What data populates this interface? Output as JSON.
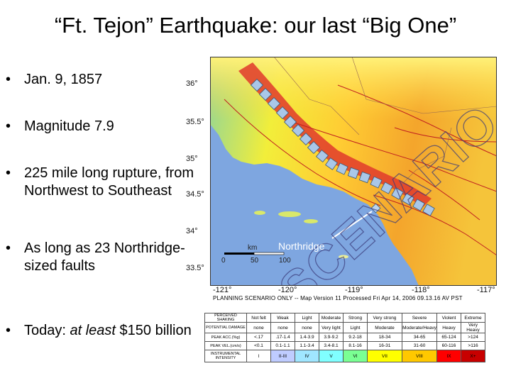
{
  "title": "“Ft. Tejon” Earthquake: our last “Big One”",
  "bullets": [
    {
      "text": "Jan. 9, 1857"
    },
    {
      "text": "Magnitude 7.9"
    },
    {
      "text": "225 mile long rupture, from Northwest to Southeast"
    },
    {
      "text_prefix": "As long as 23 Northridge-sized faults"
    },
    {
      "text_prefix": "Today: ",
      "emph": "at least",
      "text_suffix": " $150 billion"
    }
  ],
  "map": {
    "lat_labels": [
      "36°",
      "35.5°",
      "35°",
      "34.5°",
      "34°",
      "33.5°"
    ],
    "lon_labels": [
      "-121°",
      "-120°",
      "-119°",
      "-118°",
      "-117°"
    ],
    "scale": {
      "unit": "km",
      "ticks": [
        "0",
        "50",
        "100"
      ]
    },
    "callout": "Northridge",
    "watermark": "SCENARIO",
    "scenario_note": "PLANNING SCENARIO ONLY -- Map Version 11 Processed Fri Apr 14, 2006 09.13.16 AV PST"
  },
  "legend": {
    "rows": [
      {
        "header": "PERCEIVED SHAKING",
        "cells": [
          "Not felt",
          "Weak",
          "Light",
          "Moderate",
          "Strong",
          "Very strong",
          "Severe",
          "Violent",
          "Extreme"
        ]
      },
      {
        "header": "POTENTIAL DAMAGE",
        "cells": [
          "none",
          "none",
          "none",
          "Very light",
          "Light",
          "Moderate",
          "Moderate/Heavy",
          "Heavy",
          "Very Heavy"
        ]
      },
      {
        "header": "PEAK ACC.(%g)",
        "cells": [
          "<.17",
          ".17-1.4",
          "1.4-3.9",
          "3.9-9.2",
          "9.2-18",
          "18-34",
          "34-65",
          "65-124",
          ">124"
        ]
      },
      {
        "header": "PEAK VEL.(cm/s)",
        "cells": [
          "<0.1",
          "0.1-1.1",
          "1.1-3.4",
          "3.4-8.1",
          "8.1-16",
          "16-31",
          "31-60",
          "60-116",
          ">116"
        ]
      },
      {
        "header": "INSTRUMENTAL INTENSITY",
        "cells": [
          "I",
          "II-III",
          "IV",
          "V",
          "VI",
          "VII",
          "VIII",
          "IX",
          "X+"
        ]
      }
    ],
    "colors": [
      "#ffffff",
      "#bfccff",
      "#a0e6ff",
      "#80ffff",
      "#7aff93",
      "#ffff00",
      "#ffc800",
      "#ff0000",
      "#c80000"
    ]
  }
}
